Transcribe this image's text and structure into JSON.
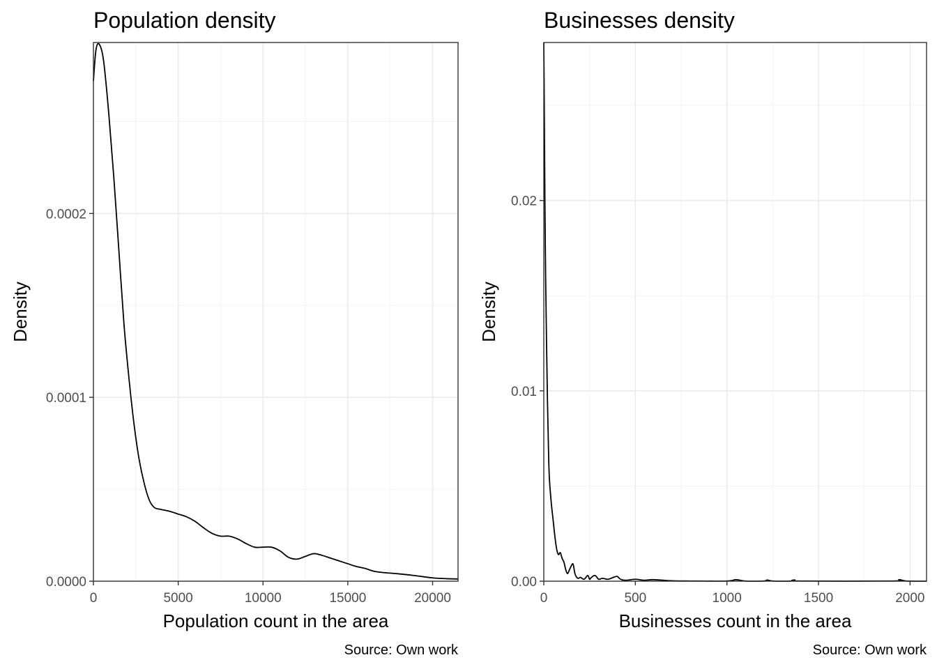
{
  "chart_data": [
    {
      "type": "line",
      "title": "Population density",
      "xlabel": "Population count in the area",
      "ylabel": "Density",
      "caption": "Source: Own work",
      "xlim": [
        0,
        21500
      ],
      "ylim": [
        0,
        0.000293
      ],
      "x_ticks": [
        0,
        5000,
        10000,
        15000,
        20000
      ],
      "x_tick_labels": [
        "0",
        "5000",
        "10000",
        "15000",
        "20000"
      ],
      "y_ticks": [
        0,
        0.0001,
        0.0002
      ],
      "y_tick_labels": [
        "0.0000",
        "0.0001",
        "0.0002"
      ],
      "grid": true,
      "series": [
        {
          "x": [
            0,
            150,
            350,
            600,
            900,
            1200,
            1500,
            1800,
            2100,
            2400,
            2700,
            3000,
            3300,
            3600,
            4000,
            4500,
            5000,
            5500,
            6000,
            6500,
            7000,
            7500,
            8000,
            8500,
            9000,
            9500,
            10000,
            10500,
            11000,
            11500,
            12000,
            12500,
            13000,
            13500,
            14000,
            14500,
            15000,
            15500,
            16000,
            16500,
            17000,
            18000,
            19000,
            20000,
            21000,
            21500
          ],
          "y": [
            0.000272,
            0.000289,
            0.000292,
            0.000283,
            0.000255,
            0.00022,
            0.00018,
            0.00014,
            0.00011,
            8.5e-05,
            6.6e-05,
            5.3e-05,
            4.4e-05,
            4e-05,
            3.9e-05,
            3.8e-05,
            3.65e-05,
            3.5e-05,
            3.25e-05,
            2.9e-05,
            2.6e-05,
            2.45e-05,
            2.45e-05,
            2.3e-05,
            2.05e-05,
            1.85e-05,
            1.85e-05,
            1.85e-05,
            1.65e-05,
            1.3e-05,
            1.2e-05,
            1.35e-05,
            1.5e-05,
            1.4e-05,
            1.25e-05,
            1.1e-05,
            9.5e-06,
            8e-06,
            7e-06,
            5.5e-06,
            4.8e-06,
            4e-06,
            3e-06,
            1.8e-06,
            1.3e-06,
            1.2e-06
          ]
        }
      ]
    },
    {
      "type": "line",
      "title": "Businesses density",
      "xlabel": "Businesses count in the area",
      "ylabel": "Density",
      "caption": "Source: Own work",
      "xlim": [
        0,
        2090
      ],
      "ylim": [
        0,
        0.0283
      ],
      "x_ticks": [
        0,
        500,
        1000,
        1500,
        2000
      ],
      "x_tick_labels": [
        "0",
        "500",
        "1000",
        "1500",
        "2000"
      ],
      "y_ticks": [
        0,
        0.01,
        0.02
      ],
      "y_tick_labels": [
        "0.00",
        "0.01",
        "0.02"
      ],
      "grid": true,
      "series": [
        {
          "x": [
            0,
            2,
            4,
            6,
            10,
            15,
            20,
            25,
            30,
            40,
            50,
            60,
            70,
            80,
            90,
            100,
            110,
            120,
            130,
            140,
            150,
            160,
            170,
            180,
            190,
            200,
            220,
            240,
            250,
            260,
            280,
            300,
            320,
            350,
            380,
            400,
            420,
            450,
            500,
            550,
            600,
            700,
            800,
            1000,
            1050,
            1100,
            1200,
            1220,
            1250,
            1350,
            1370,
            1400,
            1900,
            1940,
            1980,
            2090
          ],
          "y": [
            0.0283,
            0.026,
            0.023,
            0.02,
            0.016,
            0.0125,
            0.0095,
            0.0072,
            0.0055,
            0.0042,
            0.0033,
            0.0024,
            0.0017,
            0.0014,
            0.0015,
            0.0012,
            0.001,
            0.0006,
            0.0004,
            0.0006,
            0.0008,
            0.0009,
            0.0004,
            0.0002,
            0.00015,
            0.0002,
            0.0001,
            0.0003,
            0.0001,
            0.0002,
            0.0003,
            0.0001,
            0.00015,
            0.0001,
            0.0002,
            0.00025,
            0.0001,
            5e-05,
            0.0001,
            5e-05,
            8e-05,
            2e-05,
            1e-05,
            1e-05,
            8e-05,
            1e-05,
            1e-05,
            6e-05,
            1e-05,
            1e-05,
            7e-05,
            1e-05,
            1e-05,
            8e-05,
            1e-05,
            0.0
          ]
        }
      ]
    }
  ]
}
